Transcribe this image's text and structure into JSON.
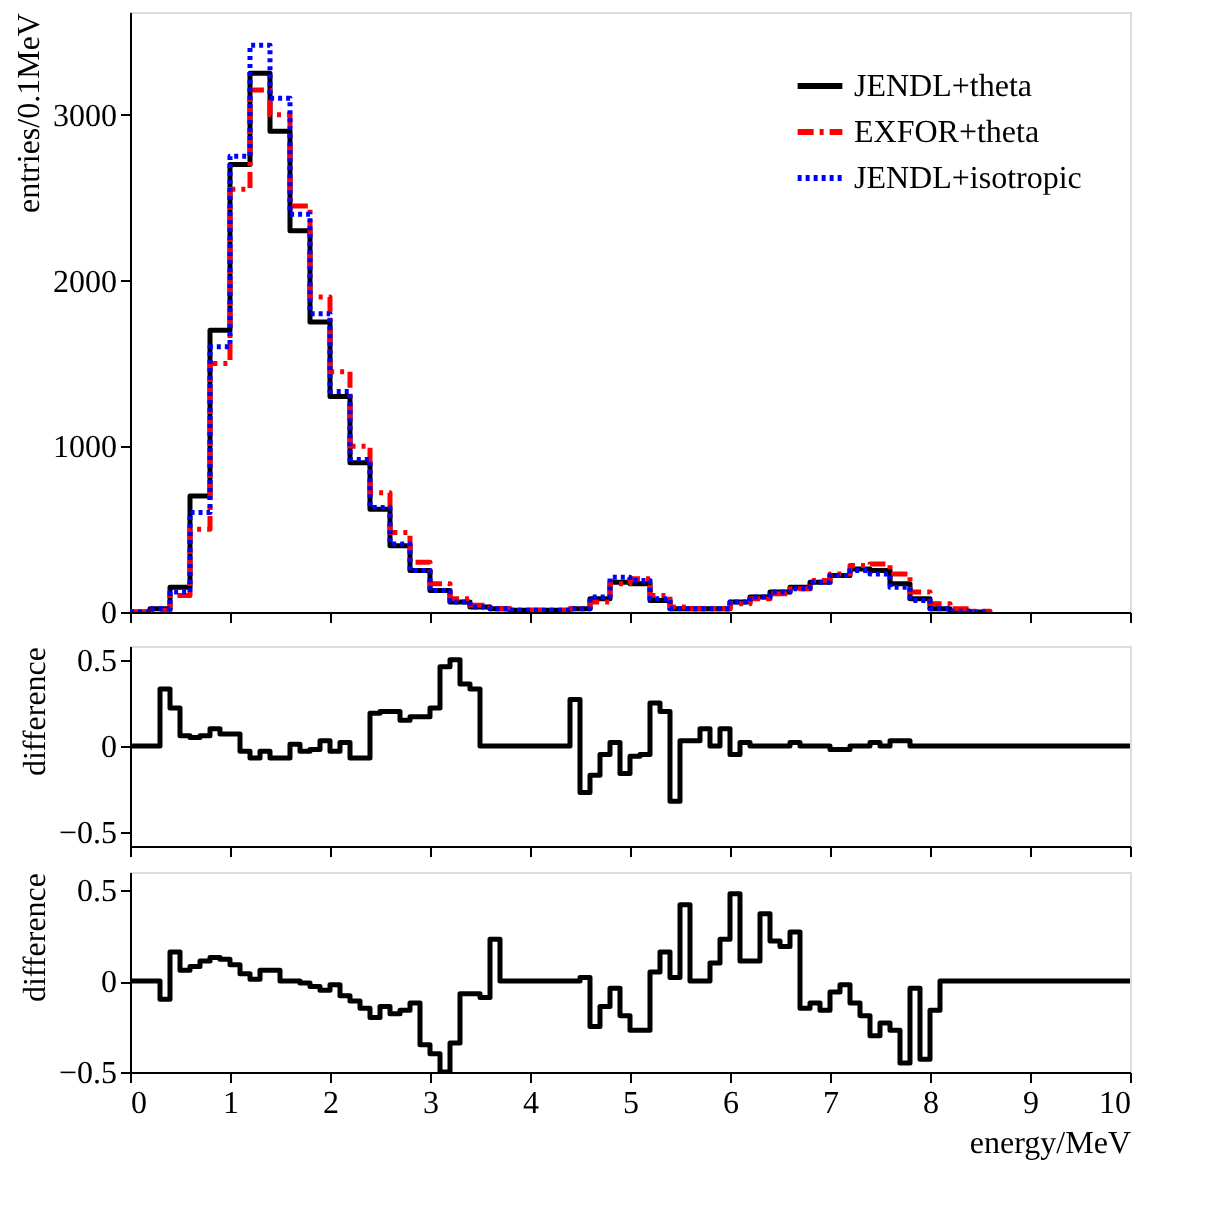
{
  "chart_data": [
    {
      "type": "step",
      "ylabel": "entries/0.1MeV",
      "xlim": [
        0,
        10
      ],
      "xticks": [
        0,
        1,
        2,
        3,
        4,
        5,
        6,
        7,
        8,
        9,
        10
      ],
      "ylim": [
        0,
        3620
      ],
      "yticks": [
        0,
        1000,
        2000,
        3000
      ],
      "tick_labels": "y",
      "grid": false,
      "legend": "top right",
      "x": [
        0,
        0.2,
        0.4,
        0.6,
        0.8,
        1.0,
        1.2,
        1.4,
        1.6,
        1.8,
        2.0,
        2.2,
        2.4,
        2.6,
        2.8,
        3.0,
        3.2,
        3.4,
        3.6,
        3.8,
        4.0,
        4.2,
        4.4,
        4.6,
        4.8,
        5.0,
        5.2,
        5.4,
        5.6,
        5.8,
        6.0,
        6.2,
        6.4,
        6.6,
        6.8,
        7.0,
        7.2,
        7.4,
        7.6,
        7.8,
        8.0,
        8.2,
        8.4,
        8.6
      ],
      "series": [
        {
          "name": "JENDL+theta",
          "color": "#000000",
          "line_style": "solid",
          "values": [
            0,
            20,
            150,
            700,
            1700,
            2700,
            3250,
            2900,
            2300,
            1750,
            1300,
            900,
            620,
            400,
            250,
            130,
            60,
            30,
            20,
            10,
            10,
            10,
            20,
            80,
            180,
            170,
            70,
            20,
            20,
            20,
            60,
            90,
            120,
            150,
            180,
            220,
            260,
            250,
            170,
            80,
            20,
            5,
            0,
            0
          ]
        },
        {
          "name": "EXFOR+theta",
          "color": "#ff0000",
          "line_style": "dashed",
          "values": [
            0,
            10,
            100,
            500,
            1500,
            2550,
            3150,
            3000,
            2450,
            1900,
            1450,
            1000,
            720,
            480,
            300,
            170,
            80,
            40,
            20,
            10,
            10,
            10,
            20,
            60,
            170,
            200,
            100,
            30,
            20,
            20,
            50,
            80,
            110,
            140,
            190,
            230,
            280,
            290,
            230,
            120,
            50,
            20,
            5,
            0
          ]
        },
        {
          "name": "JENDL+isotropic",
          "color": "#0000ff",
          "line_style": "dotted",
          "values": [
            0,
            20,
            120,
            600,
            1600,
            2750,
            3420,
            3100,
            2400,
            1800,
            1330,
            920,
            630,
            410,
            250,
            130,
            60,
            30,
            20,
            10,
            10,
            10,
            20,
            90,
            210,
            190,
            80,
            20,
            20,
            20,
            60,
            90,
            120,
            140,
            180,
            220,
            250,
            230,
            150,
            70,
            20,
            5,
            0,
            0
          ]
        }
      ]
    },
    {
      "type": "step",
      "ylabel": "difference",
      "xlim": [
        0,
        10
      ],
      "xticks": [
        0,
        1,
        2,
        3,
        4,
        5,
        6,
        7,
        8,
        9,
        10
      ],
      "ylim": [
        -0.58,
        0.58
      ],
      "yticks": [
        -0.5,
        0,
        0.5
      ],
      "tick_labels": "y",
      "grid": false,
      "x": [
        0,
        0.3,
        0.4,
        0.5,
        0.6,
        0.7,
        0.8,
        0.9,
        1.0,
        1.1,
        1.2,
        1.3,
        1.4,
        1.6,
        1.7,
        1.8,
        1.9,
        2.0,
        2.1,
        2.2,
        2.4,
        2.5,
        2.7,
        2.8,
        3.0,
        3.1,
        3.2,
        3.3,
        3.4,
        3.5,
        4.4,
        4.5,
        4.6,
        4.7,
        4.8,
        4.9,
        5.0,
        5.1,
        5.2,
        5.3,
        5.4,
        5.5,
        5.7,
        5.8,
        5.9,
        6.0,
        6.1,
        6.2,
        6.6,
        6.7,
        7.0,
        7.2,
        7.4,
        7.5,
        7.6,
        7.8,
        10
      ],
      "series": [
        {
          "color": "#000000",
          "line_style": "solid",
          "values": [
            0,
            0.33,
            0.22,
            0.06,
            0.05,
            0.06,
            0.1,
            0.07,
            0.07,
            -0.03,
            -0.07,
            -0.03,
            -0.07,
            0.01,
            -0.03,
            -0.02,
            0.03,
            -0.03,
            0.02,
            -0.07,
            0.19,
            0.2,
            0.15,
            0.17,
            0.22,
            0.46,
            0.5,
            0.36,
            0.33,
            0,
            0.27,
            -0.27,
            -0.17,
            -0.05,
            0.02,
            -0.16,
            -0.06,
            -0.05,
            0.25,
            0.2,
            -0.32,
            0.03,
            0.1,
            0,
            0.1,
            -0.05,
            0.02,
            0,
            0.02,
            0,
            -0.02,
            0,
            0.02,
            0,
            0.03,
            0,
            0
          ]
        }
      ]
    },
    {
      "type": "step",
      "ylabel": "difference",
      "xlabel": "energy/MeV",
      "xlim": [
        0,
        10
      ],
      "xticks": [
        0,
        1,
        2,
        3,
        4,
        5,
        6,
        7,
        8,
        9,
        10
      ],
      "ylim": [
        -0.5,
        0.6
      ],
      "yticks": [
        -0.5,
        0,
        0.5
      ],
      "grid": false,
      "x": [
        0,
        0.3,
        0.4,
        0.5,
        0.6,
        0.7,
        0.8,
        0.9,
        1.0,
        1.1,
        1.2,
        1.3,
        1.5,
        1.7,
        1.8,
        1.9,
        2.0,
        2.1,
        2.2,
        2.3,
        2.4,
        2.5,
        2.6,
        2.7,
        2.8,
        2.9,
        3.0,
        3.1,
        3.2,
        3.3,
        3.5,
        3.6,
        3.7,
        4.5,
        4.6,
        4.7,
        4.8,
        4.9,
        5.0,
        5.2,
        5.3,
        5.4,
        5.5,
        5.6,
        5.8,
        5.9,
        6.0,
        6.1,
        6.3,
        6.4,
        6.5,
        6.6,
        6.7,
        6.8,
        6.9,
        7.0,
        7.1,
        7.2,
        7.3,
        7.4,
        7.5,
        7.6,
        7.7,
        7.8,
        7.9,
        8.0,
        8.1,
        10
      ],
      "series": [
        {
          "color": "#000000",
          "line_style": "solid",
          "values": [
            0,
            -0.1,
            0.16,
            0.06,
            0.08,
            0.11,
            0.13,
            0.12,
            0.09,
            0.04,
            0.01,
            0.06,
            0,
            -0.01,
            -0.03,
            -0.05,
            -0.02,
            -0.08,
            -0.11,
            -0.15,
            -0.2,
            -0.14,
            -0.18,
            -0.16,
            -0.12,
            -0.35,
            -0.4,
            -0.5,
            -0.34,
            -0.07,
            -0.09,
            0.23,
            0,
            0.02,
            -0.25,
            -0.14,
            -0.04,
            -0.19,
            -0.27,
            0.05,
            0.16,
            0.02,
            0.42,
            0,
            0.1,
            0.23,
            0.48,
            0.11,
            0.37,
            0.22,
            0.19,
            0.27,
            -0.15,
            -0.12,
            -0.16,
            -0.06,
            -0.02,
            -0.12,
            -0.19,
            -0.3,
            -0.23,
            -0.27,
            -0.45,
            -0.04,
            -0.43,
            -0.16,
            0,
            0
          ]
        }
      ]
    }
  ]
}
